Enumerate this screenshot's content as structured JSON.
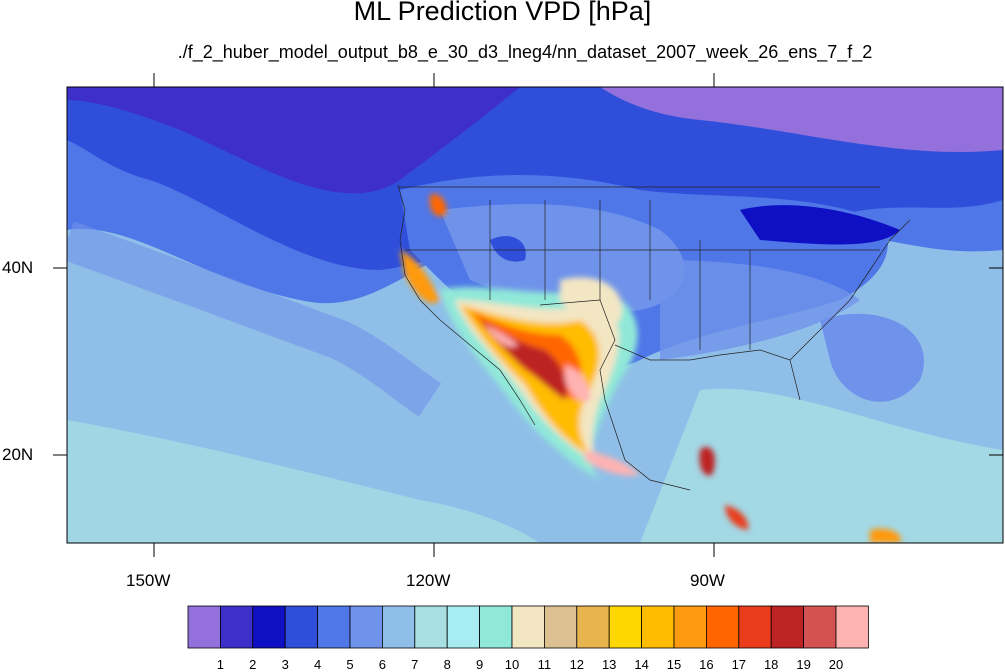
{
  "title": "ML Prediction VPD [hPa]",
  "subtitle": "./f_2_huber_model_output_b8_e_30_d3_lneg4/nn_dataset_2007_week_26_ens_7_f_2",
  "lat_labels": [
    "40N",
    "20N"
  ],
  "lon_labels": [
    "150W",
    "120W",
    "90W"
  ],
  "colorbar": {
    "labels": [
      "1",
      "2",
      "3",
      "4",
      "5",
      "6",
      "7",
      "8",
      "9",
      "10",
      "11",
      "12",
      "13",
      "14",
      "15",
      "16",
      "17",
      "18",
      "19",
      "20"
    ],
    "colors": [
      "#9370db",
      "#3e2fcb",
      "#0f0fc4",
      "#2f4fdb",
      "#4f77e8",
      "#6f93ea",
      "#8fbfe8",
      "#a8dfe3",
      "#a6ecf0",
      "#90e8d8",
      "#f3e6c3",
      "#dcc092",
      "#e8b44e",
      "#ffd700",
      "#ffbc00",
      "#ff9a11",
      "#ff6600",
      "#ea3c1a",
      "#bd2323",
      "#d45252",
      "#ffb2b2"
    ]
  }
}
